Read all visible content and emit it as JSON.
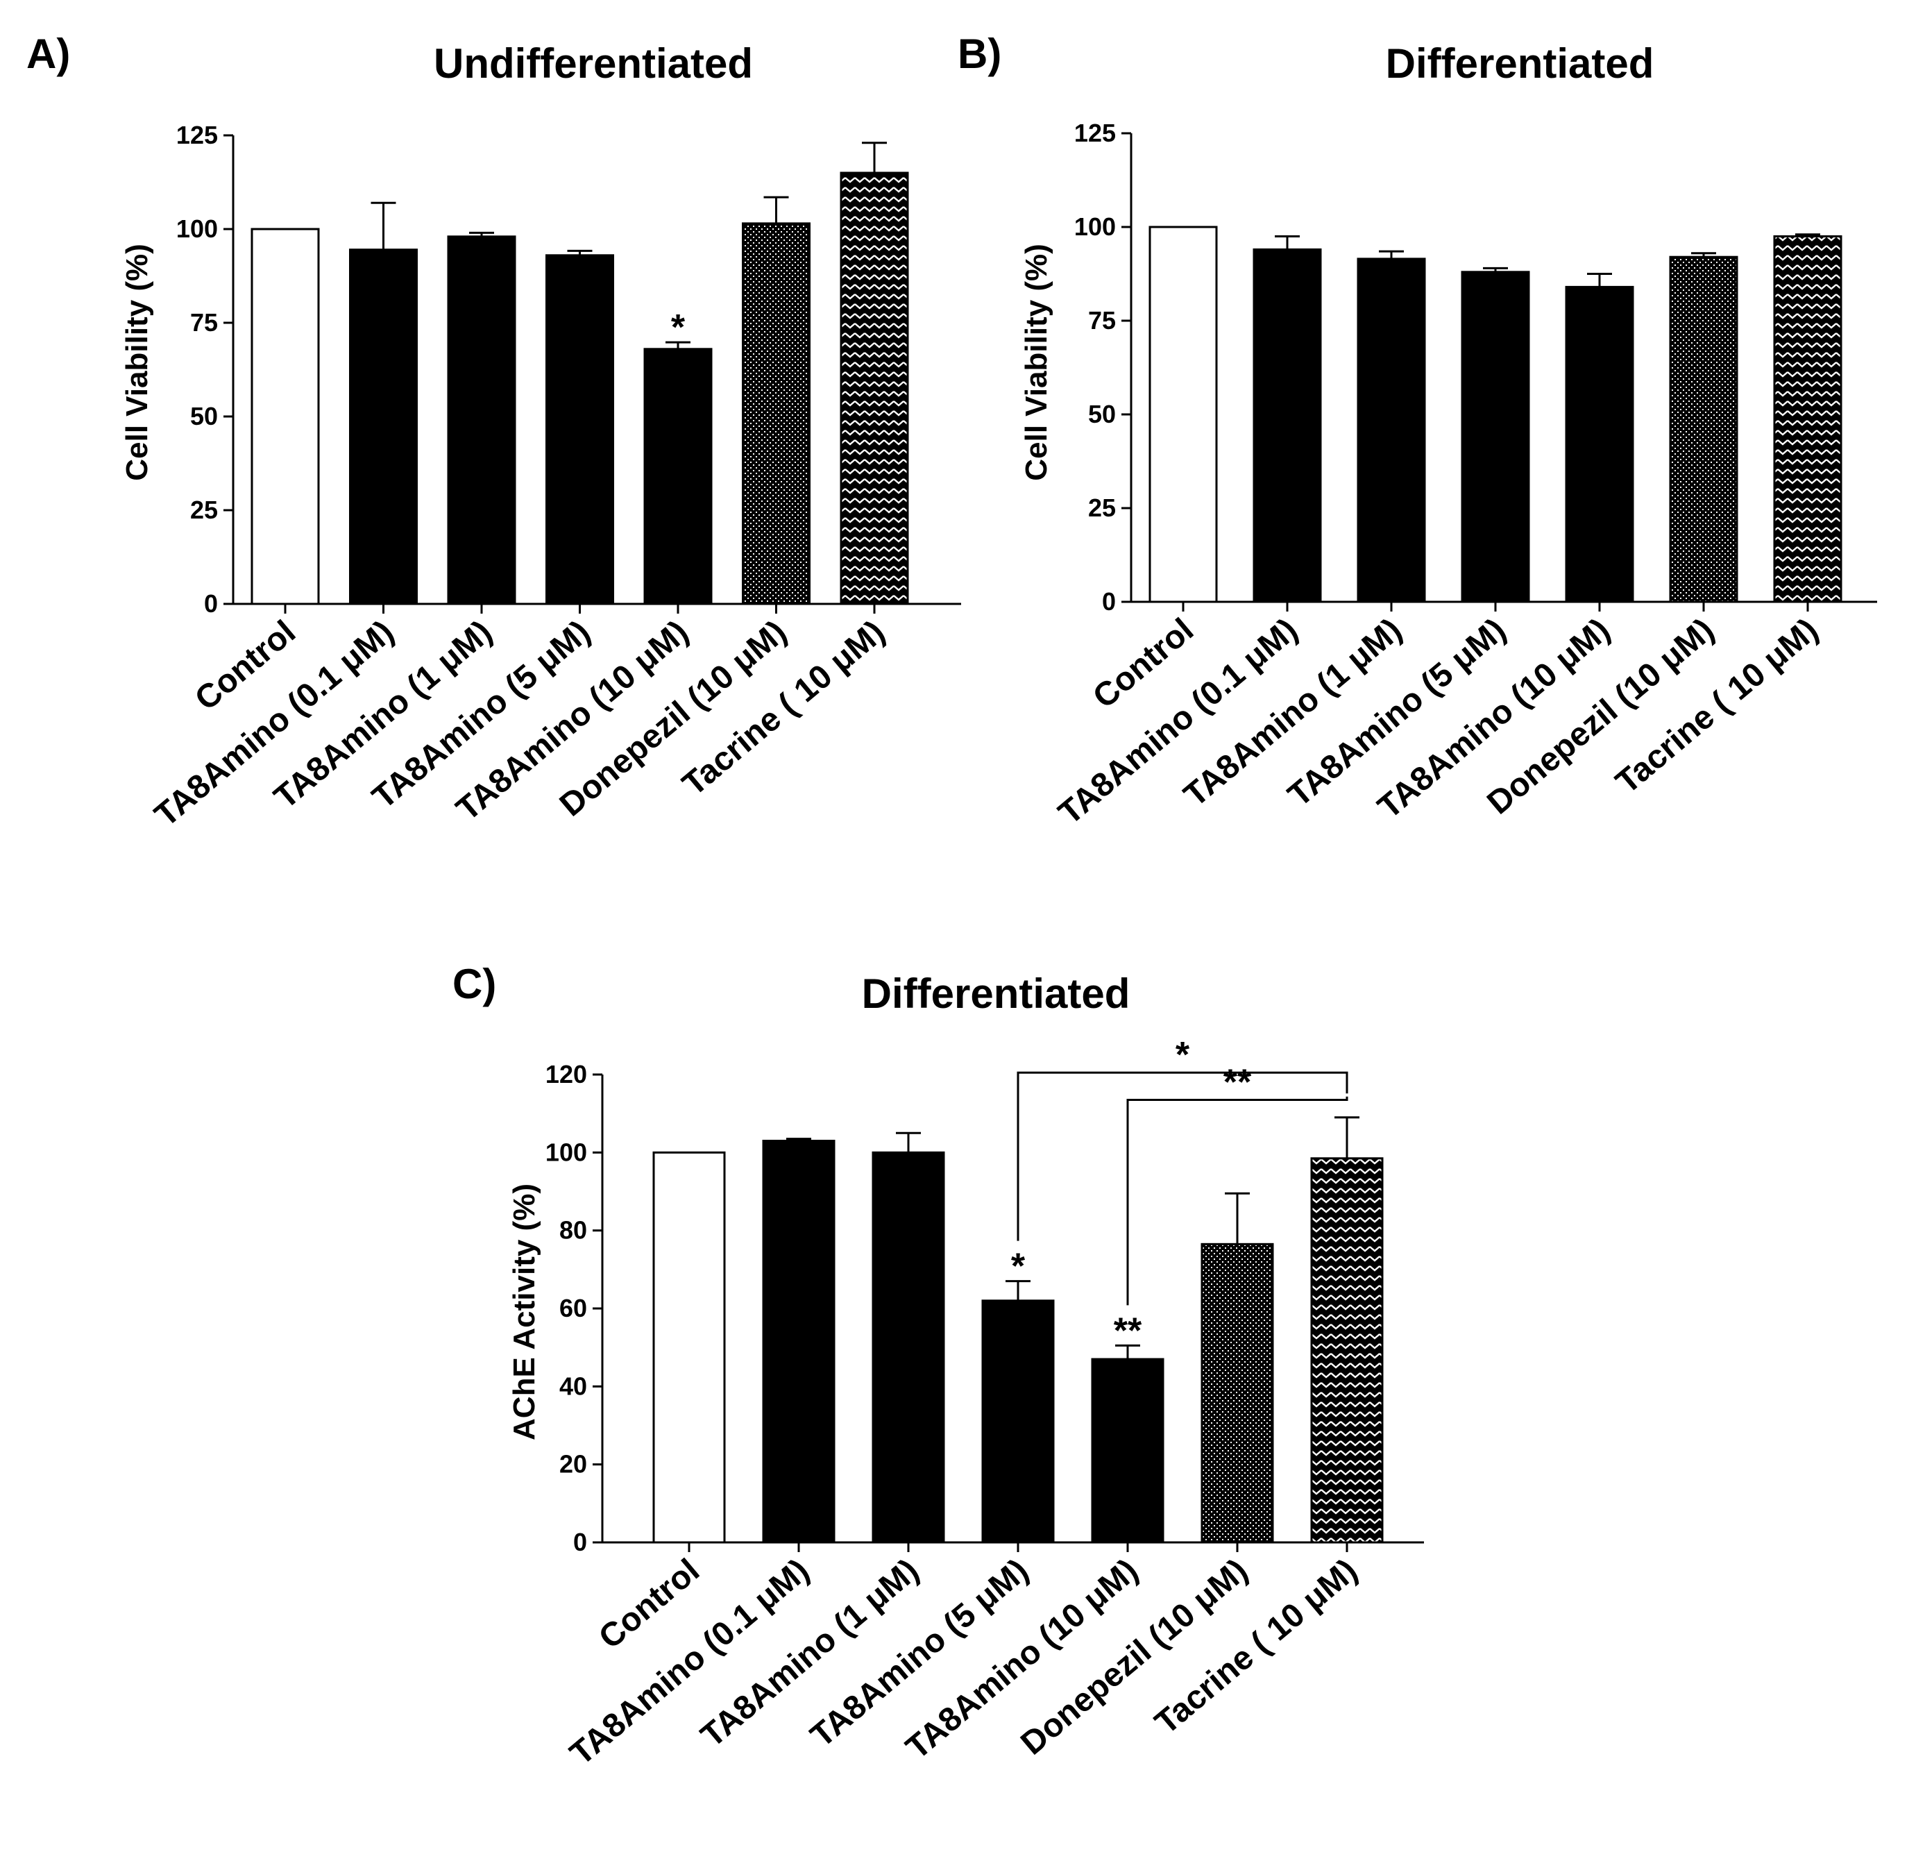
{
  "patterns": {
    "Control": "white",
    "TA8Amino (0.1 μM)": "black",
    "TA8Amino (1 μM)": "black",
    "TA8Amino (5 μM)": "black",
    "TA8Amino (10 μM)": "black",
    "Donepezil (10 μM)": "dots",
    "Tacrine ( 10 μM)": "chevron"
  },
  "colors": {
    "bar_black": "#000000",
    "bar_white": "#ffffff",
    "axis": "#000000"
  },
  "chart_data": [
    {
      "id": "A",
      "panel_label": "A)",
      "type": "bar",
      "title": "Undifferentiated",
      "xlabel": "",
      "ylabel": "Cell Viability (%)",
      "ylim": [
        0,
        125
      ],
      "yticks": [
        0,
        25,
        50,
        75,
        100,
        125
      ],
      "categories": [
        "Control",
        "TA8Amino (0.1 μM)",
        "TA8Amino (1 μM)",
        "TA8Amino (5 μM)",
        "TA8Amino (10 μM)",
        "Donepezil (10 μM)",
        "Tacrine ( 10 μM)"
      ],
      "values": [
        100,
        94.5,
        98,
        93,
        68,
        101.5,
        115
      ],
      "errors": [
        0,
        12.5,
        1,
        1.2,
        1.8,
        7,
        8
      ],
      "annotations": [
        {
          "category_index": 4,
          "text": "*"
        }
      ],
      "brackets": []
    },
    {
      "id": "B",
      "panel_label": "B)",
      "type": "bar",
      "title": "Differentiated",
      "xlabel": "",
      "ylabel": "Cell Viability (%)",
      "ylim": [
        0,
        125
      ],
      "yticks": [
        0,
        25,
        50,
        75,
        100,
        125
      ],
      "categories": [
        "Control",
        "TA8Amino (0.1 μM)",
        "TA8Amino (1 μM)",
        "TA8Amino (5 μM)",
        "TA8Amino (10 μM)",
        "Donepezil (10 μM)",
        "Tacrine ( 10 μM)"
      ],
      "values": [
        100,
        94,
        91.5,
        88,
        84,
        92,
        97.5
      ],
      "errors": [
        0,
        3.5,
        2,
        1,
        3.5,
        1,
        0.5
      ],
      "annotations": [],
      "brackets": []
    },
    {
      "id": "C",
      "panel_label": "C)",
      "type": "bar",
      "title": "Differentiated",
      "xlabel": "",
      "ylabel": "AChE Activity (%)",
      "ylim": [
        0,
        120
      ],
      "yticks": [
        0,
        20,
        40,
        60,
        80,
        100,
        120
      ],
      "categories": [
        "Control",
        "TA8Amino (0.1 μM)",
        "TA8Amino (1 μM)",
        "TA8Amino (5 μM)",
        "TA8Amino (10 μM)",
        "Donepezil (10 μM)",
        "Tacrine ( 10 μM)"
      ],
      "values": [
        100,
        103,
        100,
        62,
        47,
        76.5,
        98.5
      ],
      "errors": [
        0,
        0.5,
        5,
        5,
        3.5,
        13,
        10.5
      ],
      "annotations": [
        {
          "category_index": 3,
          "text": "*"
        },
        {
          "category_index": 4,
          "text": "**"
        }
      ],
      "brackets": [
        {
          "from": 3,
          "to": 6,
          "level": 120.5,
          "text": "*"
        },
        {
          "from": 4,
          "to": 6,
          "level": 113.5,
          "text": "**"
        }
      ]
    }
  ]
}
